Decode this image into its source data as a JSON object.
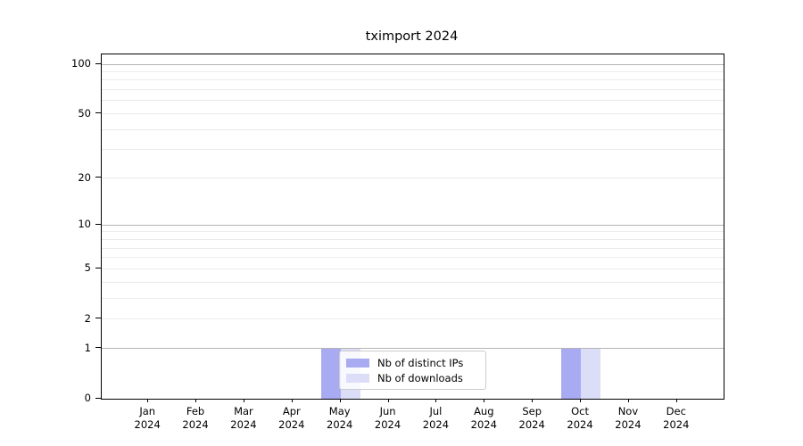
{
  "chart_data": {
    "type": "bar",
    "title": "tximport 2024",
    "categories": [
      "Jan",
      "Feb",
      "Mar",
      "Apr",
      "May",
      "Jun",
      "Jul",
      "Aug",
      "Sep",
      "Oct",
      "Nov",
      "Dec"
    ],
    "category_year": "2024",
    "series": [
      {
        "name": "Nb of distinct IPs",
        "color": "#a9abf2",
        "values": [
          0,
          0,
          0,
          0,
          1,
          0,
          0,
          0,
          0,
          1,
          0,
          0
        ]
      },
      {
        "name": "Nb of downloads",
        "color": "#dcdef8",
        "values": [
          0,
          0,
          0,
          0,
          1,
          0,
          0,
          0,
          0,
          1,
          0,
          0
        ]
      }
    ],
    "xlabel": "",
    "ylabel": "",
    "yscale": "log1p",
    "ylim": [
      0,
      115
    ],
    "yticks": [
      0,
      1,
      2,
      5,
      10,
      20,
      50,
      100
    ],
    "major_gridlines": [
      1,
      10,
      100
    ],
    "minor_gridlines": [
      2,
      3,
      4,
      5,
      6,
      7,
      8,
      9,
      20,
      30,
      40,
      50,
      60,
      70,
      80,
      90
    ],
    "grid": "horizontal only",
    "legend_position": "inside lower-center-left",
    "colors": {
      "major_grid": "#b4b4b4",
      "minor_grid": "#ebebeb",
      "spine": "#000000",
      "background": "#ffffff",
      "legend_border": "#cccccc"
    }
  }
}
